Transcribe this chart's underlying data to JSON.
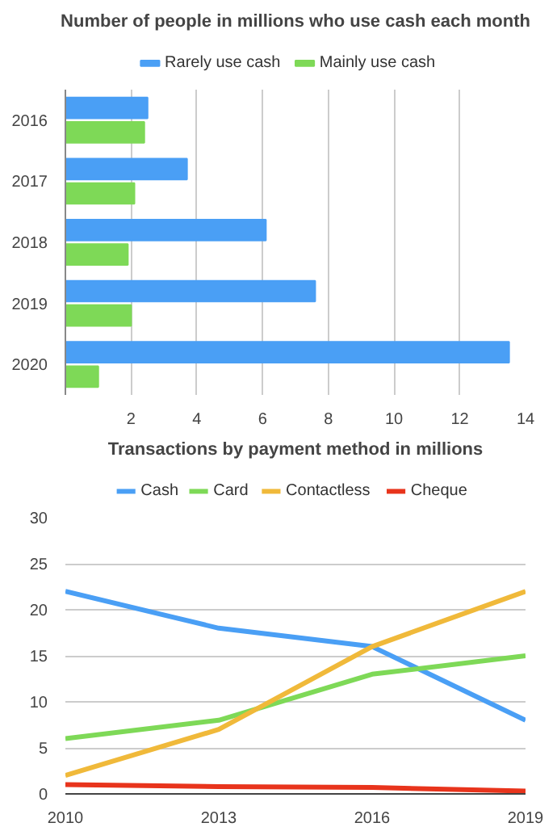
{
  "chart_data": [
    {
      "type": "bar",
      "orientation": "horizontal",
      "title": "Number of people in millions who use cash each month",
      "categories": [
        "2016",
        "2017",
        "2018",
        "2019",
        "2020"
      ],
      "series": [
        {
          "name": "Rarely use cash",
          "color": "#4a9ff5",
          "values": [
            2.5,
            3.7,
            6.1,
            7.6,
            13.5
          ]
        },
        {
          "name": "Mainly use cash",
          "color": "#7ed957",
          "values": [
            2.4,
            2.1,
            1.9,
            2.0,
            1.0
          ]
        }
      ],
      "xlim": [
        0,
        14
      ],
      "xticks": [
        2,
        4,
        6,
        8,
        10,
        12,
        14
      ],
      "grid": "x",
      "legend": "top"
    },
    {
      "type": "line",
      "title": "Transactions by payment method in millions",
      "x": [
        2010,
        2013,
        2016,
        2019
      ],
      "series": [
        {
          "name": "Cash",
          "color": "#4a9ff5",
          "values": [
            22,
            18,
            16,
            8
          ]
        },
        {
          "name": "Card",
          "color": "#7ed957",
          "values": [
            6,
            8,
            13,
            15
          ]
        },
        {
          "name": "Contactless",
          "color": "#f0b93a",
          "values": [
            2,
            7,
            16,
            22
          ]
        },
        {
          "name": "Cheque",
          "color": "#e8341c",
          "values": [
            1,
            0.8,
            0.7,
            0.3
          ]
        }
      ],
      "xlim": [
        2010,
        2019
      ],
      "xticks": [
        2010,
        2013,
        2016,
        2019
      ],
      "ylim": [
        0,
        30
      ],
      "yticks": [
        0,
        5,
        10,
        15,
        20,
        25,
        30
      ],
      "grid": "y",
      "legend": "top",
      "line_style": "solid"
    }
  ]
}
